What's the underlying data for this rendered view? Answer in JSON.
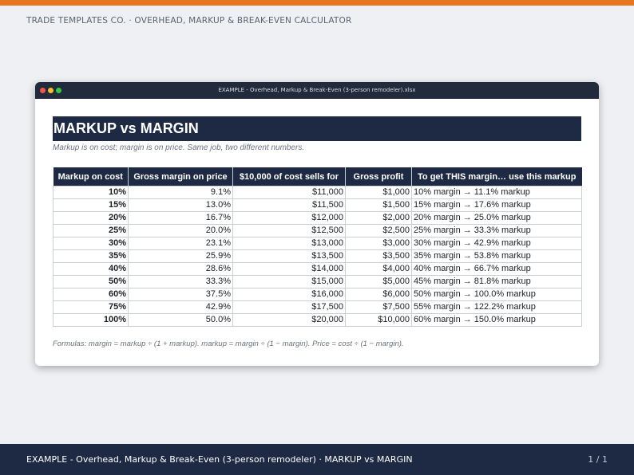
{
  "header": {
    "brand": "TRADE TEMPLATES CO.",
    "separator": "·",
    "product": "OVERHEAD, MARKUP & BREAK-EVEN CALCULATOR"
  },
  "colors": {
    "accent": "#e8761f",
    "navy": "#1e2a44",
    "titlebar": "#222b3b",
    "background": "#eef0f3"
  },
  "window": {
    "title": "EXAMPLE - Overhead, Markup & Break-Even (3-person remodeler).xlsx",
    "controls": [
      "close-dot",
      "minimize-dot",
      "maximize-dot"
    ]
  },
  "sheet": {
    "title": "MARKUP vs MARGIN",
    "subtitle": "Markup is on cost; margin is on price. Same job, two different numbers.",
    "columns": [
      "Markup on cost",
      "Gross margin on price",
      "$10,000 of cost sells for",
      "Gross profit",
      "To get THIS margin… use this markup"
    ],
    "rows": [
      {
        "markup": "10%",
        "margin": "9.1%",
        "sells": "$11,000",
        "profit": "$1,000",
        "target": "10% margin → 11.1% markup"
      },
      {
        "markup": "15%",
        "margin": "13.0%",
        "sells": "$11,500",
        "profit": "$1,500",
        "target": "15% margin → 17.6% markup"
      },
      {
        "markup": "20%",
        "margin": "16.7%",
        "sells": "$12,000",
        "profit": "$2,000",
        "target": "20% margin → 25.0% markup"
      },
      {
        "markup": "25%",
        "margin": "20.0%",
        "sells": "$12,500",
        "profit": "$2,500",
        "target": "25% margin → 33.3% markup"
      },
      {
        "markup": "30%",
        "margin": "23.1%",
        "sells": "$13,000",
        "profit": "$3,000",
        "target": "30% margin → 42.9% markup"
      },
      {
        "markup": "35%",
        "margin": "25.9%",
        "sells": "$13,500",
        "profit": "$3,500",
        "target": "35% margin → 53.8% markup"
      },
      {
        "markup": "40%",
        "margin": "28.6%",
        "sells": "$14,000",
        "profit": "$4,000",
        "target": "40% margin → 66.7% markup"
      },
      {
        "markup": "50%",
        "margin": "33.3%",
        "sells": "$15,000",
        "profit": "$5,000",
        "target": "45% margin → 81.8% markup"
      },
      {
        "markup": "60%",
        "margin": "37.5%",
        "sells": "$16,000",
        "profit": "$6,000",
        "target": "50% margin → 100.0% markup"
      },
      {
        "markup": "75%",
        "margin": "42.9%",
        "sells": "$17,500",
        "profit": "$7,500",
        "target": "55% margin → 122.2% markup"
      },
      {
        "markup": "100%",
        "margin": "50.0%",
        "sells": "$20,000",
        "profit": "$10,000",
        "target": "60% margin → 150.0% markup"
      }
    ],
    "formulas": "Formulas: margin = markup ÷ (1 + markup).   markup = margin ÷ (1 − margin).   Price = cost ÷ (1 − margin)."
  },
  "footer": {
    "title": "EXAMPLE - Overhead, Markup & Break-Even (3-person remodeler) · MARKUP vs MARGIN",
    "page": "1 / 1"
  }
}
